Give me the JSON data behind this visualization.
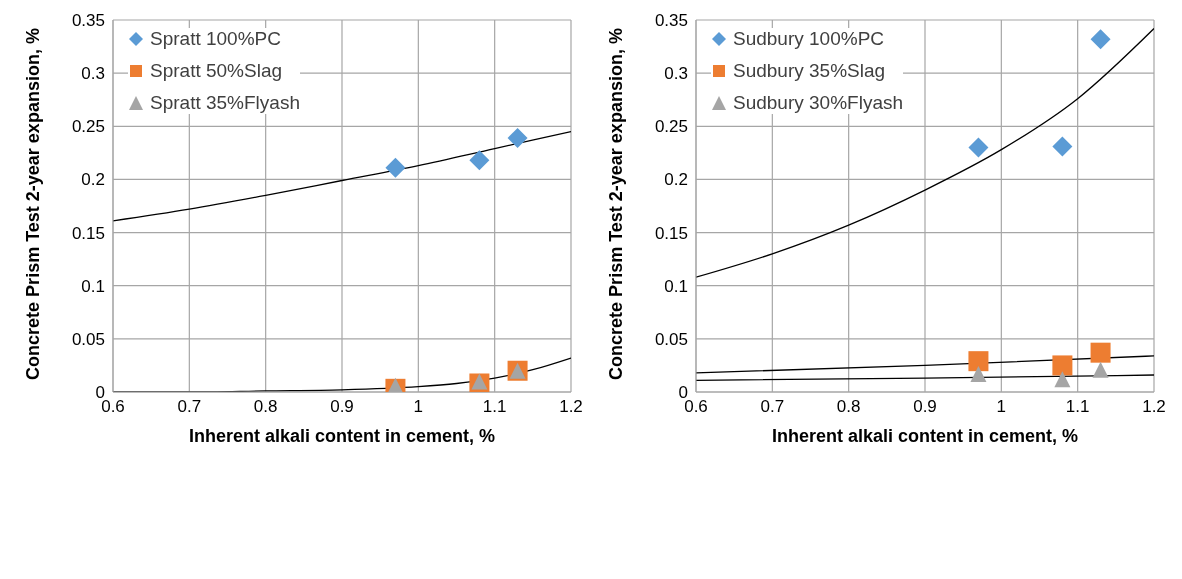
{
  "chart_data": [
    {
      "type": "scatter",
      "xlabel": "Inherent alkali content in cement, %",
      "ylabel": "Concrete Prism Test 2-year expansion, %",
      "xlim": [
        0.6,
        1.2
      ],
      "xticks": [
        0.6,
        0.7,
        0.8,
        0.9,
        1,
        1.1,
        1.2
      ],
      "ylim": [
        0,
        0.35
      ],
      "yticks": [
        0,
        0.05,
        0.1,
        0.15,
        0.2,
        0.25,
        0.3,
        0.35
      ],
      "grid": true,
      "legend": "top left",
      "series": [
        {
          "name": "Spratt 100%PC",
          "color": "#5b9bd5",
          "marker": "diamond",
          "x": [
            0.97,
            1.08,
            1.13
          ],
          "values": [
            0.211,
            0.218,
            0.239
          ]
        },
        {
          "name": "Spratt 50%Slag",
          "color": "#ed7d31",
          "marker": "square",
          "x": [
            0.97,
            1.08,
            1.13
          ],
          "values": [
            0.003,
            0.008,
            0.02
          ]
        },
        {
          "name": "Spratt 35%Flyash",
          "color": "#a5a5a5",
          "marker": "triangle",
          "x": [
            0.97,
            1.08,
            1.13
          ],
          "values": [
            0.005,
            0.009,
            0.019
          ]
        },
        {
          "type": "line",
          "color": "#000000",
          "marker": "none",
          "x": [
            0.6,
            0.7,
            0.8,
            0.9,
            1.0,
            1.1,
            1.2
          ],
          "values": [
            0.161,
            0.172,
            0.185,
            0.199,
            0.213,
            0.229,
            0.245
          ]
        },
        {
          "type": "line",
          "color": "#000000",
          "marker": "none",
          "x": [
            0.6,
            0.7,
            0.8,
            0.9,
            1.0,
            1.05,
            1.1,
            1.15,
            1.2
          ],
          "values": [
            0.0,
            0.0,
            0.001,
            0.002,
            0.005,
            0.008,
            0.013,
            0.021,
            0.032
          ]
        }
      ]
    },
    {
      "type": "scatter",
      "xlabel": "Inherent alkali content in cement, %",
      "ylabel": "Concrete Prism Test 2-year expansion, %",
      "xlim": [
        0.6,
        1.2
      ],
      "xticks": [
        0.6,
        0.7,
        0.8,
        0.9,
        1,
        1.1,
        1.2
      ],
      "ylim": [
        0,
        0.35
      ],
      "yticks": [
        0,
        0.05,
        0.1,
        0.15,
        0.2,
        0.25,
        0.3,
        0.35
      ],
      "grid": true,
      "legend": "top left",
      "series": [
        {
          "name": "Sudbury 100%PC",
          "color": "#5b9bd5",
          "marker": "diamond",
          "x": [
            0.97,
            1.08,
            1.13
          ],
          "values": [
            0.23,
            0.231,
            0.332
          ]
        },
        {
          "name": "Sudbury 35%Slag",
          "color": "#ed7d31",
          "marker": "square",
          "x": [
            0.97,
            1.08,
            1.13
          ],
          "values": [
            0.029,
            0.025,
            0.037
          ]
        },
        {
          "name": "Sudbury 30%Flyash",
          "color": "#a5a5a5",
          "marker": "triangle",
          "x": [
            0.97,
            1.08,
            1.13
          ],
          "values": [
            0.016,
            0.011,
            0.02
          ]
        },
        {
          "type": "line",
          "color": "#000000",
          "marker": "none",
          "x": [
            0.6,
            0.7,
            0.8,
            0.9,
            1.0,
            1.1,
            1.2
          ],
          "values": [
            0.108,
            0.13,
            0.157,
            0.19,
            0.228,
            0.276,
            0.342
          ]
        },
        {
          "type": "line",
          "color": "#000000",
          "marker": "none",
          "x": [
            0.6,
            0.9,
            1.2
          ],
          "values": [
            0.018,
            0.025,
            0.034
          ]
        },
        {
          "type": "line",
          "color": "#000000",
          "marker": "none",
          "x": [
            0.6,
            0.9,
            1.2
          ],
          "values": [
            0.011,
            0.013,
            0.016
          ]
        }
      ]
    }
  ]
}
